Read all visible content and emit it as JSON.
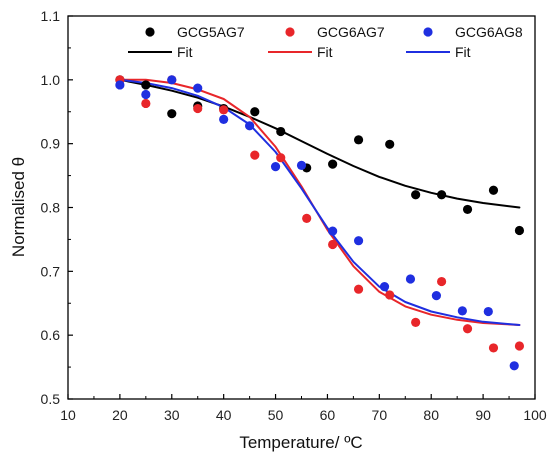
{
  "chart_data": {
    "type": "scatter",
    "xlabel": "Temperature/ ºC",
    "ylabel": "Normalised θ",
    "xlim": [
      10,
      100
    ],
    "ylim": [
      0.5,
      1.1
    ],
    "xticks": [
      "10",
      "20",
      "30",
      "40",
      "50",
      "60",
      "70",
      "80",
      "90",
      "100"
    ],
    "yticks": [
      "0.5",
      "0.6",
      "0.7",
      "0.8",
      "0.9",
      "1.0",
      "1.1"
    ],
    "grid": false,
    "legend": "top",
    "fit_label": "Fit",
    "series": [
      {
        "name": "GCG5AG7",
        "color": "#000000",
        "points": [
          [
            20,
            1.0
          ],
          [
            25,
            0.992
          ],
          [
            30,
            0.947
          ],
          [
            35,
            0.959
          ],
          [
            40,
            0.955
          ],
          [
            46,
            0.95
          ],
          [
            51,
            0.919
          ],
          [
            56,
            0.862
          ],
          [
            61,
            0.868
          ],
          [
            66,
            0.906
          ],
          [
            72,
            0.899
          ],
          [
            77,
            0.82
          ],
          [
            82,
            0.82
          ],
          [
            87,
            0.797
          ],
          [
            92,
            0.827
          ],
          [
            97,
            0.764
          ]
        ],
        "fit": [
          [
            20,
            1.0
          ],
          [
            25,
            0.992
          ],
          [
            30,
            0.983
          ],
          [
            35,
            0.972
          ],
          [
            40,
            0.958
          ],
          [
            45,
            0.942
          ],
          [
            50,
            0.924
          ],
          [
            55,
            0.904
          ],
          [
            60,
            0.884
          ],
          [
            65,
            0.865
          ],
          [
            70,
            0.848
          ],
          [
            75,
            0.834
          ],
          [
            80,
            0.823
          ],
          [
            85,
            0.814
          ],
          [
            90,
            0.807
          ],
          [
            97,
            0.8
          ]
        ]
      },
      {
        "name": "GCG6AG7",
        "color": "#e8262a",
        "points": [
          [
            20,
            1.0
          ],
          [
            25,
            0.963
          ],
          [
            30,
            1.0
          ],
          [
            35,
            0.955
          ],
          [
            40,
            0.953
          ],
          [
            46,
            0.882
          ],
          [
            51,
            0.878
          ],
          [
            56,
            0.783
          ],
          [
            61,
            0.742
          ],
          [
            66,
            0.672
          ],
          [
            72,
            0.663
          ],
          [
            77,
            0.62
          ],
          [
            82,
            0.684
          ],
          [
            87,
            0.61
          ],
          [
            92,
            0.58
          ],
          [
            97,
            0.583
          ]
        ],
        "fit": [
          [
            20,
            1.0
          ],
          [
            25,
            1.0
          ],
          [
            30,
            0.995
          ],
          [
            35,
            0.985
          ],
          [
            40,
            0.97
          ],
          [
            45,
            0.942
          ],
          [
            50,
            0.895
          ],
          [
            55,
            0.833
          ],
          [
            60,
            0.765
          ],
          [
            65,
            0.708
          ],
          [
            70,
            0.668
          ],
          [
            75,
            0.645
          ],
          [
            80,
            0.632
          ],
          [
            85,
            0.624
          ],
          [
            90,
            0.619
          ],
          [
            97,
            0.616
          ]
        ]
      },
      {
        "name": "GCG6AG8",
        "color": "#1f2fe0",
        "points": [
          [
            20,
            0.992
          ],
          [
            25,
            0.977
          ],
          [
            30,
            1.0
          ],
          [
            35,
            0.987
          ],
          [
            40,
            0.938
          ],
          [
            45,
            0.928
          ],
          [
            50,
            0.864
          ],
          [
            55,
            0.866
          ],
          [
            61,
            0.763
          ],
          [
            66,
            0.748
          ],
          [
            71,
            0.676
          ],
          [
            76,
            0.688
          ],
          [
            81,
            0.662
          ],
          [
            86,
            0.638
          ],
          [
            91,
            0.637
          ],
          [
            96,
            0.552
          ]
        ],
        "fit": [
          [
            20,
            1.0
          ],
          [
            25,
            0.995
          ],
          [
            30,
            0.987
          ],
          [
            35,
            0.975
          ],
          [
            40,
            0.957
          ],
          [
            45,
            0.93
          ],
          [
            50,
            0.887
          ],
          [
            55,
            0.83
          ],
          [
            60,
            0.768
          ],
          [
            65,
            0.715
          ],
          [
            70,
            0.676
          ],
          [
            75,
            0.652
          ],
          [
            80,
            0.637
          ],
          [
            85,
            0.628
          ],
          [
            90,
            0.621
          ],
          [
            97,
            0.616
          ]
        ]
      }
    ]
  }
}
